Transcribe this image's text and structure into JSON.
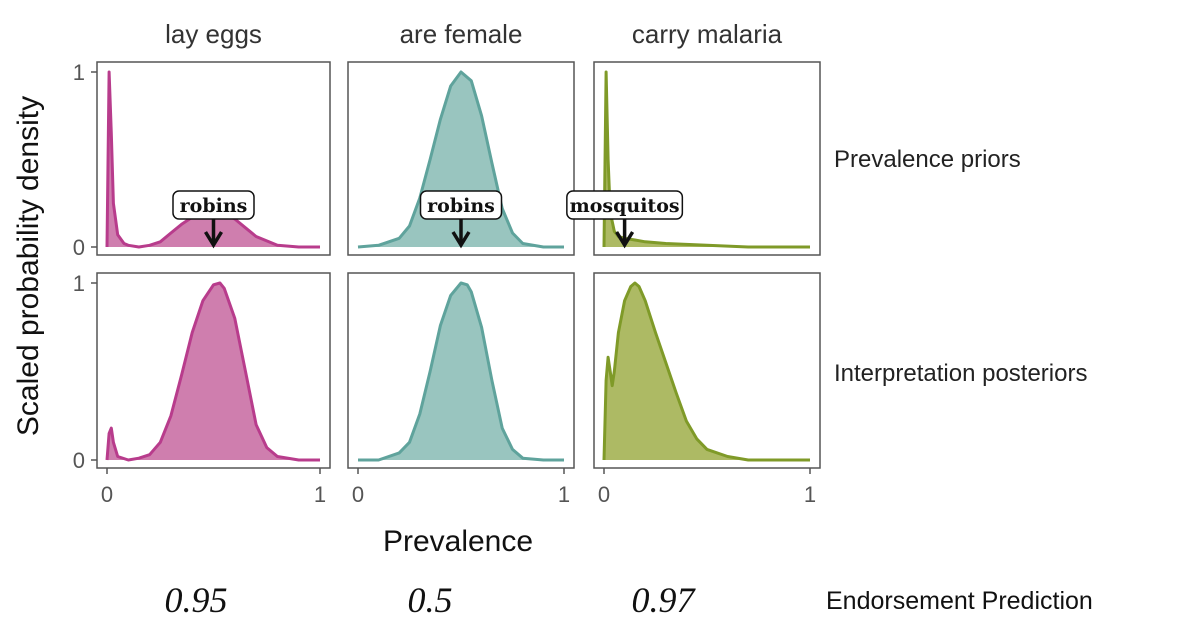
{
  "chart_data": {
    "type": "area",
    "title": "",
    "xlabel": "Prevalence",
    "ylabel": "Scaled probability density",
    "xlim": [
      0,
      1
    ],
    "ylim": [
      0,
      1
    ],
    "x_ticks": [
      "0",
      "1"
    ],
    "y_ticks": [
      "0",
      "1"
    ],
    "facets": [
      {
        "title": "lay eggs",
        "color": "#b83c8c",
        "fill": "#cc77aa",
        "prediction": "0.95"
      },
      {
        "title": "are female",
        "color": "#5fa39c",
        "fill": "#93c2bc",
        "prediction": "0.5"
      },
      {
        "title": "carry malaria",
        "color": "#7f9a28",
        "fill": "#a9b65c",
        "prediction": "0.97"
      }
    ],
    "rows": [
      "Prevalence priors",
      "Interpretation posteriors"
    ],
    "prediction_label": "Endorsement Prediction",
    "priors": [
      {
        "x": [
          0,
          0.01,
          0.02,
          0.03,
          0.05,
          0.08,
          0.1,
          0.15,
          0.2,
          0.25,
          0.3,
          0.35,
          0.4,
          0.45,
          0.5,
          0.55,
          0.6,
          0.65,
          0.7,
          0.8,
          0.9,
          1.0
        ],
        "y": [
          0,
          1.0,
          0.65,
          0.25,
          0.07,
          0.02,
          0.01,
          0.0,
          0.01,
          0.03,
          0.08,
          0.13,
          0.17,
          0.19,
          0.2,
          0.19,
          0.16,
          0.11,
          0.06,
          0.01,
          0,
          0
        ]
      },
      {
        "x": [
          0,
          0.1,
          0.2,
          0.25,
          0.3,
          0.35,
          0.4,
          0.45,
          0.5,
          0.55,
          0.6,
          0.65,
          0.7,
          0.75,
          0.8,
          0.9,
          1.0
        ],
        "y": [
          0,
          0.01,
          0.05,
          0.12,
          0.28,
          0.5,
          0.73,
          0.92,
          1.0,
          0.95,
          0.75,
          0.48,
          0.22,
          0.08,
          0.02,
          0,
          0
        ]
      },
      {
        "x": [
          0,
          0.01,
          0.02,
          0.03,
          0.05,
          0.07,
          0.1,
          0.15,
          0.2,
          0.3,
          0.5,
          0.7,
          1.0
        ],
        "y": [
          0,
          1.0,
          0.5,
          0.2,
          0.09,
          0.06,
          0.05,
          0.04,
          0.03,
          0.02,
          0.01,
          0,
          0
        ]
      }
    ],
    "posteriors": [
      {
        "x": [
          0,
          0.01,
          0.02,
          0.03,
          0.05,
          0.1,
          0.15,
          0.2,
          0.25,
          0.3,
          0.35,
          0.4,
          0.45,
          0.5,
          0.53,
          0.55,
          0.6,
          0.65,
          0.7,
          0.75,
          0.8,
          0.9,
          1.0
        ],
        "y": [
          0,
          0.15,
          0.18,
          0.1,
          0.02,
          0.0,
          0.01,
          0.03,
          0.1,
          0.25,
          0.48,
          0.72,
          0.9,
          0.99,
          1.0,
          0.97,
          0.8,
          0.5,
          0.2,
          0.07,
          0.02,
          0,
          0
        ]
      },
      {
        "x": [
          0,
          0.1,
          0.2,
          0.25,
          0.3,
          0.35,
          0.4,
          0.45,
          0.5,
          0.53,
          0.55,
          0.6,
          0.65,
          0.7,
          0.75,
          0.8,
          0.9,
          1.0
        ],
        "y": [
          0,
          0.0,
          0.04,
          0.1,
          0.26,
          0.5,
          0.76,
          0.93,
          1.0,
          0.99,
          0.95,
          0.75,
          0.45,
          0.18,
          0.06,
          0.01,
          0,
          0
        ]
      },
      {
        "x": [
          0,
          0.01,
          0.02,
          0.03,
          0.04,
          0.05,
          0.07,
          0.1,
          0.13,
          0.15,
          0.17,
          0.2,
          0.25,
          0.3,
          0.35,
          0.4,
          0.45,
          0.5,
          0.6,
          0.7,
          0.8,
          1.0
        ],
        "y": [
          0,
          0.45,
          0.58,
          0.5,
          0.42,
          0.5,
          0.72,
          0.9,
          0.98,
          1.0,
          0.98,
          0.9,
          0.72,
          0.55,
          0.38,
          0.22,
          0.12,
          0.06,
          0.02,
          0,
          0,
          0
        ]
      }
    ],
    "annotations": [
      {
        "facet": 0,
        "label": "robins",
        "x": 0.5
      },
      {
        "facet": 1,
        "label": "robins",
        "x": 0.5
      },
      {
        "facet": 2,
        "label": "mosquitos",
        "x": 0.1
      }
    ]
  }
}
